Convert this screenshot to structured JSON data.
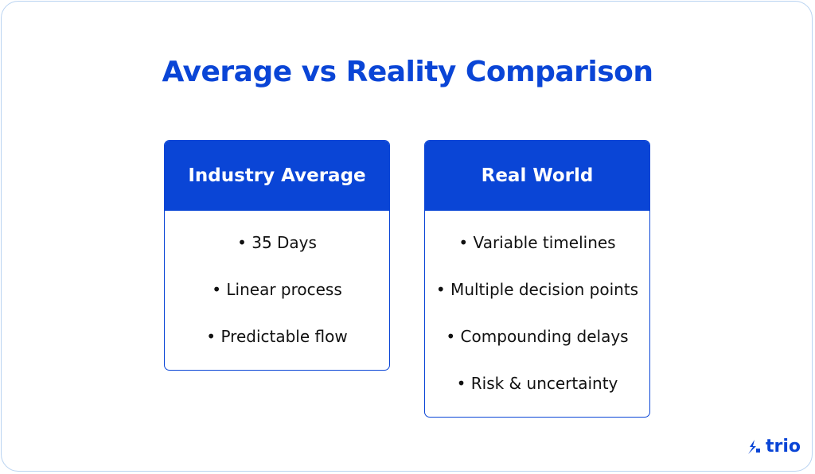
{
  "title": "Average vs Reality Comparison",
  "cards": [
    {
      "header": "Industry Average",
      "items": [
        "• 35 Days",
        "• Linear process",
        "• Predictable flow"
      ]
    },
    {
      "header": "Real World",
      "items": [
        "• Variable timelines",
        "• Multiple decision points",
        "• Compounding delays",
        "• Risk & uncertainty"
      ]
    }
  ],
  "logo": "trio"
}
